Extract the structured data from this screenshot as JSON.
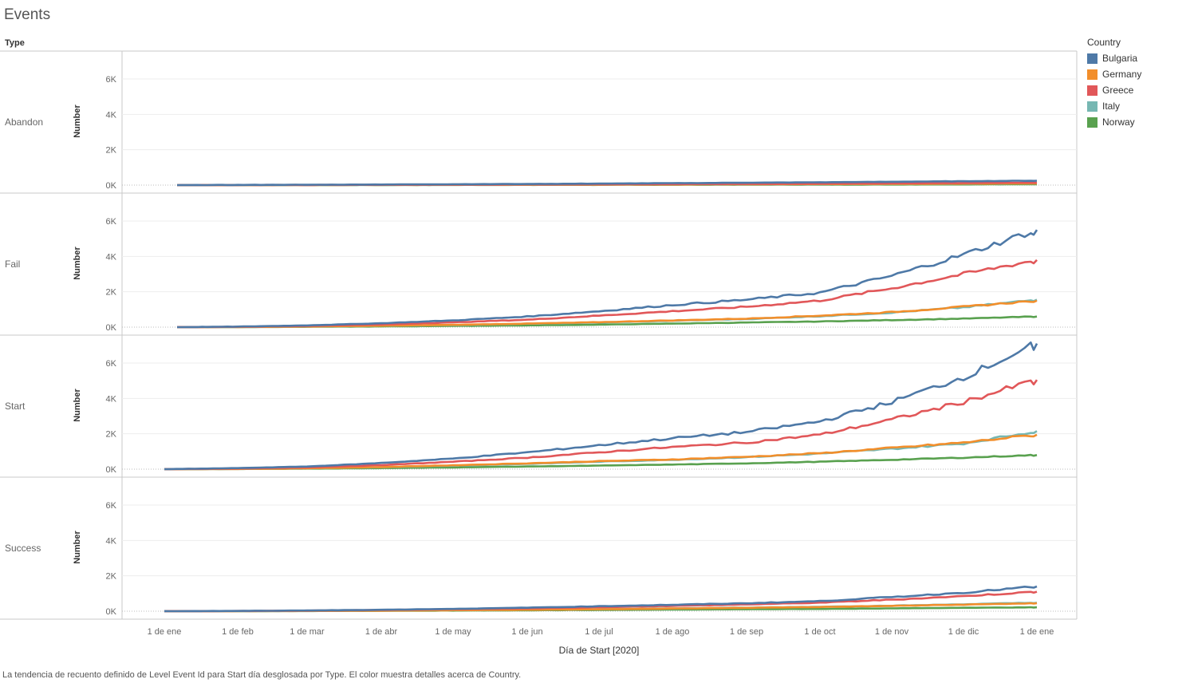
{
  "title": "Events",
  "facet_header": "Type",
  "legend": {
    "title": "Country",
    "items": [
      {
        "name": "Bulgaria",
        "color": "#4e79a7"
      },
      {
        "name": "Germany",
        "color": "#f28e2b"
      },
      {
        "name": "Greece",
        "color": "#e15759"
      },
      {
        "name": "Italy",
        "color": "#76b7b2"
      },
      {
        "name": "Norway",
        "color": "#59a14f"
      }
    ]
  },
  "footer": "La tendencia de recuento definido de Level Event Id para Start día desglosada por Type.  El color muestra detalles acerca de Country.",
  "chart_data": {
    "type": "line",
    "xlabel": "Día de Start [2020]",
    "ylabel": "Number",
    "x_ticks": [
      "1 de ene",
      "1 de feb",
      "1 de mar",
      "1 de abr",
      "1 de may",
      "1 de jun",
      "1 de jul",
      "1 de ago",
      "1 de sep",
      "1 de oct",
      "1 de nov",
      "1 de dic",
      "1 de ene"
    ],
    "y_ticks": [
      "0K",
      "2K",
      "4K",
      "6K"
    ],
    "ylim": [
      0,
      7600
    ],
    "x_points": [
      "15 de ene",
      "1 de feb",
      "1 de mar",
      "1 de abr",
      "1 de may",
      "1 de jun",
      "1 de jul",
      "1 de ago",
      "1 de sep",
      "1 de oct",
      "1 de nov",
      "1 de dic",
      "1 de ene"
    ],
    "panels": [
      {
        "label": "Abandon",
        "start": "15 de ene",
        "series": [
          {
            "name": "Bulgaria",
            "values": [
              0,
              10,
              20,
              35,
              50,
              65,
              85,
              110,
              135,
              160,
              190,
              220,
              250
            ]
          },
          {
            "name": "Germany",
            "values": [
              0,
              5,
              8,
              12,
              18,
              25,
              30,
              40,
              50,
              60,
              70,
              80,
              95
            ]
          },
          {
            "name": "Greece",
            "values": [
              0,
              5,
              10,
              18,
              25,
              35,
              45,
              55,
              70,
              85,
              100,
              120,
              140
            ]
          },
          {
            "name": "Italy",
            "values": [
              0,
              5,
              8,
              12,
              18,
              22,
              30,
              38,
              45,
              55,
              65,
              75,
              90
            ]
          },
          {
            "name": "Norway",
            "values": [
              0,
              3,
              5,
              8,
              10,
              12,
              15,
              20,
              25,
              30,
              35,
              40,
              50
            ]
          }
        ]
      },
      {
        "label": "Fail",
        "start": "15 de ene",
        "series": [
          {
            "name": "Bulgaria",
            "values": [
              0,
              30,
              100,
              220,
              380,
              600,
              900,
              1250,
              1550,
              1950,
              2900,
              4100,
              5500
            ]
          },
          {
            "name": "Germany",
            "values": [
              0,
              10,
              35,
              80,
              130,
              200,
              280,
              380,
              480,
              650,
              850,
              1150,
              1500
            ]
          },
          {
            "name": "Greece",
            "values": [
              0,
              20,
              70,
              150,
              270,
              420,
              650,
              900,
              1150,
              1500,
              2200,
              3000,
              3800
            ]
          },
          {
            "name": "Italy",
            "values": [
              0,
              10,
              30,
              75,
              120,
              190,
              260,
              360,
              460,
              620,
              820,
              1120,
              1550
            ]
          },
          {
            "name": "Norway",
            "values": [
              0,
              5,
              20,
              40,
              70,
              100,
              140,
              200,
              260,
              320,
              400,
              480,
              600
            ]
          }
        ]
      },
      {
        "label": "Start",
        "start": "1 de ene",
        "series": [
          {
            "name": "Bulgaria",
            "values": [
              0,
              60,
              150,
              350,
              600,
              950,
              1350,
              1750,
              2100,
              2700,
              3800,
              5200,
              7100
            ]
          },
          {
            "name": "Germany",
            "values": [
              0,
              15,
              50,
              120,
              220,
              330,
              450,
              550,
              700,
              900,
              1200,
              1500,
              1950
            ]
          },
          {
            "name": "Greece",
            "values": [
              0,
              35,
              100,
              230,
              420,
              650,
              950,
              1250,
              1500,
              1950,
              2800,
              3800,
              5050
            ]
          },
          {
            "name": "Italy",
            "values": [
              0,
              15,
              45,
              110,
              200,
              300,
              420,
              530,
              680,
              880,
              1150,
              1450,
              2150
            ]
          },
          {
            "name": "Norway",
            "values": [
              0,
              10,
              30,
              60,
              100,
              150,
              200,
              260,
              330,
              420,
              530,
              650,
              800
            ]
          }
        ]
      },
      {
        "label": "Success",
        "start": "1 de ene",
        "series": [
          {
            "name": "Bulgaria",
            "values": [
              0,
              15,
              40,
              80,
              130,
              200,
              280,
              360,
              450,
              570,
              800,
              1050,
              1400
            ]
          },
          {
            "name": "Germany",
            "values": [
              0,
              5,
              15,
              30,
              55,
              80,
              110,
              150,
              190,
              240,
              300,
              370,
              450
            ]
          },
          {
            "name": "Greece",
            "values": [
              0,
              10,
              30,
              65,
              110,
              160,
              230,
              300,
              380,
              480,
              650,
              850,
              1100
            ]
          },
          {
            "name": "Italy",
            "values": [
              0,
              5,
              15,
              30,
              55,
              85,
              120,
              160,
              200,
              250,
              310,
              390,
              480
            ]
          },
          {
            "name": "Norway",
            "values": [
              0,
              3,
              10,
              20,
              35,
              50,
              70,
              90,
              110,
              130,
              160,
              190,
              220
            ]
          }
        ]
      }
    ]
  }
}
